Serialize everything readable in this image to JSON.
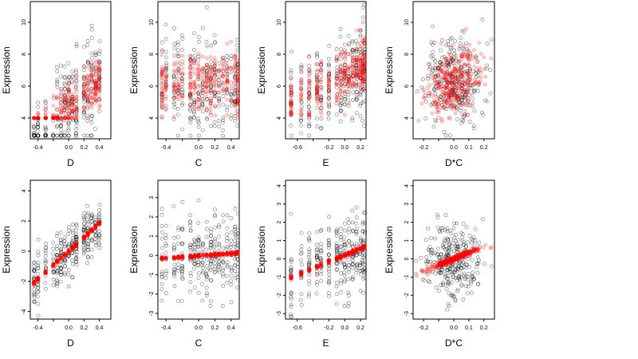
{
  "figure": {
    "background": "#ffffff"
  },
  "colors": {
    "observed": "#000000",
    "fitted": "#ff0000",
    "axis": "#000000"
  },
  "chart_data": [
    {
      "type": "scatter",
      "xlabel": "D",
      "ylabel": "Expression",
      "xlim": [
        -0.5,
        0.55
      ],
      "ylim": [
        2.7,
        11.3
      ],
      "xticks": [
        -0.4,
        -0.2,
        0.0,
        0.2,
        0.4
      ],
      "xticklabels": [
        "-0.4",
        "",
        "0.0",
        "0.2",
        "0.4"
      ],
      "yticks": [
        4,
        6,
        8,
        10
      ],
      "yticklabels": [
        "4",
        "6",
        "8",
        "10"
      ],
      "groups": [
        -0.45,
        -0.4,
        -0.3,
        -0.2,
        -0.15,
        -0.1,
        -0.05,
        0.0,
        0.05,
        0.1,
        0.2,
        0.25,
        0.3,
        0.35,
        0.4
      ],
      "series": [
        {
          "role": "observed",
          "marker": "open-circle",
          "color": "#000000",
          "center": [
            6.2,
            4.6
          ],
          "slope": 4.5,
          "spread": 1.4,
          "min": 2.9,
          "max": 11.1
        },
        {
          "role": "fitted",
          "marker": "circle",
          "color": "#ff0000",
          "center": [
            6.2,
            4.6
          ],
          "slope": 4.5,
          "spread": 0.8,
          "min": 4.0,
          "max": 9.7
        }
      ]
    },
    {
      "type": "scatter",
      "xlabel": "C",
      "ylabel": "Expression",
      "xlim": [
        -0.5,
        0.5
      ],
      "ylim": [
        2.7,
        11.3
      ],
      "xticks": [
        -0.4,
        -0.2,
        0.0,
        0.2,
        0.4
      ],
      "xticklabels": [
        "-0.4",
        "",
        "0.0",
        "0.2",
        "0.4"
      ],
      "yticks": [
        4,
        6,
        8,
        10
      ],
      "yticklabels": [
        "4",
        "6",
        "8",
        "10"
      ],
      "groups": [
        -0.45,
        -0.4,
        -0.3,
        -0.25,
        -0.2,
        -0.1,
        -0.05,
        0.0,
        0.05,
        0.1,
        0.15,
        0.2,
        0.25,
        0.3,
        0.35,
        0.4,
        0.45,
        0.48
      ],
      "series": [
        {
          "role": "observed",
          "marker": "open-circle",
          "color": "#000000",
          "center": [
            6.2,
            6.2
          ],
          "slope": 0.0,
          "spread": 1.5,
          "min": 2.9,
          "max": 11.1
        },
        {
          "role": "fitted",
          "marker": "circle",
          "color": "#ff0000",
          "center": [
            6.2,
            6.2
          ],
          "slope": 0.0,
          "spread": 1.0,
          "min": 4.0,
          "max": 9.0
        }
      ]
    },
    {
      "type": "scatter",
      "xlabel": "E",
      "ylabel": "Expression",
      "xlim": [
        -0.75,
        0.27
      ],
      "ylim": [
        2.7,
        11.3
      ],
      "xticks": [
        -0.6,
        -0.4,
        -0.2,
        0.0,
        0.2
      ],
      "xticklabels": [
        "-0.6",
        "",
        "-0.2",
        "0.0",
        "0.2"
      ],
      "yticks": [
        4,
        6,
        8,
        10
      ],
      "yticklabels": [
        "4",
        "6",
        "8",
        "10"
      ],
      "groups": [
        -0.68,
        -0.55,
        -0.45,
        -0.35,
        -0.3,
        -0.2,
        -0.1,
        -0.05,
        0.0,
        0.05,
        0.1,
        0.15,
        0.2,
        0.23,
        0.25
      ],
      "series": [
        {
          "role": "observed",
          "marker": "open-circle",
          "color": "#000000",
          "center": [
            6.2,
            6.3
          ],
          "slope": 2.5,
          "spread": 1.4,
          "min": 2.9,
          "max": 11.1
        },
        {
          "role": "fitted",
          "marker": "circle",
          "color": "#ff0000",
          "center": [
            6.2,
            6.3
          ],
          "slope": 2.5,
          "spread": 0.9,
          "min": 4.2,
          "max": 10.0
        }
      ]
    },
    {
      "type": "scatter",
      "xlabel": "D*C",
      "ylabel": "Expression",
      "xlim": [
        -0.27,
        0.27
      ],
      "ylim": [
        2.7,
        11.3
      ],
      "xticks": [
        -0.2,
        -0.1,
        0.0,
        0.1,
        0.2
      ],
      "xticklabels": [
        "-0.2",
        "",
        "0.0",
        "0.1",
        "0.2"
      ],
      "yticks": [
        4,
        6,
        8,
        10
      ],
      "yticklabels": [
        "4",
        "6",
        "8",
        "10"
      ],
      "groups": [],
      "series": [
        {
          "role": "observed",
          "marker": "open-circle",
          "color": "#000000",
          "center": [
            0.0,
            6.3
          ],
          "slope": 0.0,
          "spread": 1.4,
          "min": 2.9,
          "max": 11.1
        },
        {
          "role": "fitted",
          "marker": "circle",
          "color": "#ff0000",
          "center": [
            0.0,
            6.3
          ],
          "slope": 5.0,
          "spread": 1.0,
          "min": 3.8,
          "max": 10.0
        }
      ]
    },
    {
      "type": "scatter",
      "xlabel": "D",
      "ylabel": "Expression",
      "xlim": [
        -0.5,
        0.55
      ],
      "ylim": [
        -4.5,
        4.7
      ],
      "xticks": [
        -0.4,
        -0.2,
        0.0,
        0.2,
        0.4
      ],
      "xticklabels": [
        "-0.4",
        "",
        "0.0",
        "0.2",
        "0.4"
      ],
      "yticks": [
        -4,
        -2,
        0,
        2,
        4
      ],
      "yticklabels": [
        "-4",
        "-2",
        "0",
        "2",
        "4"
      ],
      "groups": [
        -0.45,
        -0.4,
        -0.3,
        -0.2,
        -0.15,
        -0.1,
        -0.05,
        0.0,
        0.05,
        0.1,
        0.2,
        0.25,
        0.3,
        0.35,
        0.4
      ],
      "series": [
        {
          "role": "observed",
          "marker": "open-circle",
          "color": "#000000",
          "center": [
            0.0,
            0.0
          ],
          "slope": 4.6,
          "spread": 0.9,
          "min": -4.3,
          "max": 4.3
        },
        {
          "role": "fitted",
          "marker": "circle",
          "color": "#ff0000",
          "center": [
            0.0,
            0.0
          ],
          "slope": 4.6,
          "spread": 0.05,
          "min": -2.3,
          "max": 2.6
        }
      ]
    },
    {
      "type": "scatter",
      "xlabel": "C",
      "ylabel": "Expression",
      "xlim": [
        -0.5,
        0.5
      ],
      "ylim": [
        -3.3,
        3.9
      ],
      "xticks": [
        -0.4,
        -0.2,
        0.0,
        0.2,
        0.4
      ],
      "xticklabels": [
        "-0.4",
        "",
        "0.0",
        "0.2",
        "0.4"
      ],
      "yticks": [
        -3,
        -2,
        -1,
        0,
        1,
        2,
        3
      ],
      "yticklabels": [
        "-3",
        "-2",
        "-1",
        "0",
        "1",
        "2",
        "3"
      ],
      "groups": [
        -0.45,
        -0.4,
        -0.3,
        -0.25,
        -0.2,
        -0.1,
        -0.05,
        0.0,
        0.05,
        0.1,
        0.15,
        0.2,
        0.25,
        0.3,
        0.35,
        0.4,
        0.45,
        0.48
      ],
      "series": [
        {
          "role": "observed",
          "marker": "open-circle",
          "color": "#000000",
          "center": [
            0.0,
            0.0
          ],
          "slope": 0.3,
          "spread": 1.0,
          "min": -3.1,
          "max": 3.7
        },
        {
          "role": "fitted",
          "marker": "circle",
          "color": "#ff0000",
          "center": [
            0.0,
            0.0
          ],
          "slope": 0.3,
          "spread": 0.04,
          "min": -0.3,
          "max": 0.3
        }
      ]
    },
    {
      "type": "scatter",
      "xlabel": "E",
      "ylabel": "Expression",
      "xlim": [
        -0.75,
        0.27
      ],
      "ylim": [
        -3.3,
        4.3
      ],
      "xticks": [
        -0.6,
        -0.4,
        -0.2,
        0.0,
        0.2
      ],
      "xticklabels": [
        "-0.6",
        "",
        "-0.2",
        "0.0",
        "0.2"
      ],
      "yticks": [
        -3,
        -2,
        -1,
        0,
        1,
        2,
        3,
        4
      ],
      "yticklabels": [
        "-3",
        "-2",
        "-1",
        "0",
        "1",
        "2",
        "3",
        "4"
      ],
      "groups": [
        -0.68,
        -0.55,
        -0.45,
        -0.35,
        -0.3,
        -0.2,
        -0.1,
        -0.05,
        0.0,
        0.05,
        0.1,
        0.15,
        0.2,
        0.23,
        0.25
      ],
      "series": [
        {
          "role": "observed",
          "marker": "open-circle",
          "color": "#000000",
          "center": [
            0.0,
            0.0
          ],
          "slope": 1.8,
          "spread": 1.0,
          "min": -3.2,
          "max": 4.1
        },
        {
          "role": "fitted",
          "marker": "circle",
          "color": "#ff0000",
          "center": [
            0.0,
            0.0
          ],
          "slope": 1.8,
          "spread": 0.05,
          "min": -1.4,
          "max": 0.7
        }
      ]
    },
    {
      "type": "scatter",
      "xlabel": "D*C",
      "ylabel": "Expression",
      "xlim": [
        -0.27,
        0.27
      ],
      "ylim": [
        -3.3,
        4.3
      ],
      "xticks": [
        -0.2,
        -0.1,
        0.0,
        0.1,
        0.2
      ],
      "xticklabels": [
        "-0.2",
        "",
        "0.0",
        "0.1",
        "0.2"
      ],
      "yticks": [
        -3,
        -2,
        -1,
        0,
        1,
        2,
        3,
        4
      ],
      "yticklabels": [
        "-3",
        "-2",
        "-1",
        "0",
        "1",
        "2",
        "3",
        "4"
      ],
      "groups": [],
      "series": [
        {
          "role": "observed",
          "marker": "open-circle",
          "color": "#000000",
          "center": [
            0.0,
            0.0
          ],
          "slope": 0.0,
          "spread": 1.0,
          "min": -3.2,
          "max": 4.1
        },
        {
          "role": "fitted",
          "marker": "circle",
          "color": "#ff0000",
          "center": [
            0.0,
            0.0
          ],
          "slope": 3.4,
          "spread": 0.08,
          "min": -1.0,
          "max": 1.0
        }
      ]
    }
  ]
}
